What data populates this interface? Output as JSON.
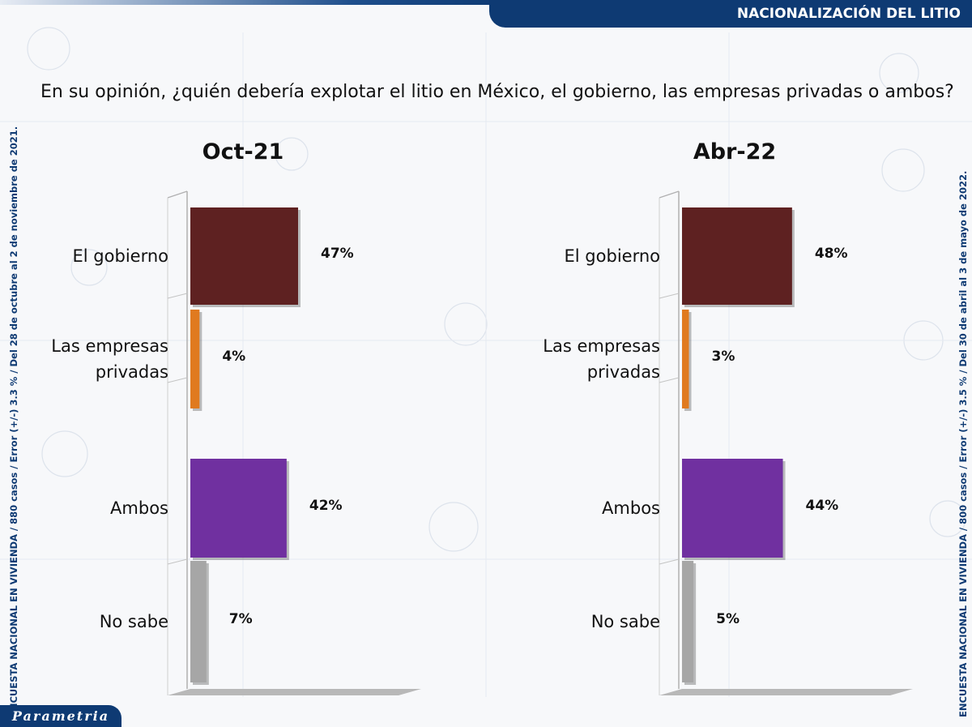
{
  "header": {
    "banner_title": "NACIONALIZACIÓN DEL LITIO"
  },
  "question": "En su opinión, ¿quién debería explotar el litio en México, el gobierno, las empresas privadas o ambos?",
  "side_notes": {
    "left": "ENCUESTA NACIONAL EN VIVIENDA / 880 casos / Error (+/-) 3.3 % / Del 28 de octubre al 2 de noviembre de 2021.",
    "right": "ENCUESTA NACIONAL EN VIVIENDA / 800 casos / Error (+/-) 3.5 % / Del 30 de abril al 3 de mayo de 2022."
  },
  "logo": {
    "text": "Parametria",
    "color": "#0e3a73"
  },
  "colors": {
    "gobierno": "#5e2121",
    "empresas": "#e07a1f",
    "ambos": "#7030a0",
    "no_sabe": "#a6a6a6"
  },
  "chart_data": [
    {
      "type": "bar",
      "orientation": "horizontal",
      "title": "Oct-21",
      "categories": [
        "El gobierno",
        "Las empresas privadas",
        "Ambos",
        "No sabe"
      ],
      "category_lines": [
        [
          "El gobierno"
        ],
        [
          "Las empresas",
          "privadas"
        ],
        [
          "Ambos"
        ],
        [
          "No sabe"
        ]
      ],
      "values": [
        47,
        4,
        42,
        7
      ],
      "value_labels": [
        "47%",
        "4%",
        "42%",
        "7%"
      ],
      "unit": "%",
      "xlim": [
        0,
        100
      ]
    },
    {
      "type": "bar",
      "orientation": "horizontal",
      "title": "Abr-22",
      "categories": [
        "El gobierno",
        "Las empresas privadas",
        "Ambos",
        "No sabe"
      ],
      "category_lines": [
        [
          "El gobierno"
        ],
        [
          "Las empresas",
          "privadas"
        ],
        [
          "Ambos"
        ],
        [
          "No sabe"
        ]
      ],
      "values": [
        48,
        3,
        44,
        5
      ],
      "value_labels": [
        "48%",
        "3%",
        "44%",
        "5%"
      ],
      "unit": "%",
      "xlim": [
        0,
        100
      ]
    }
  ]
}
